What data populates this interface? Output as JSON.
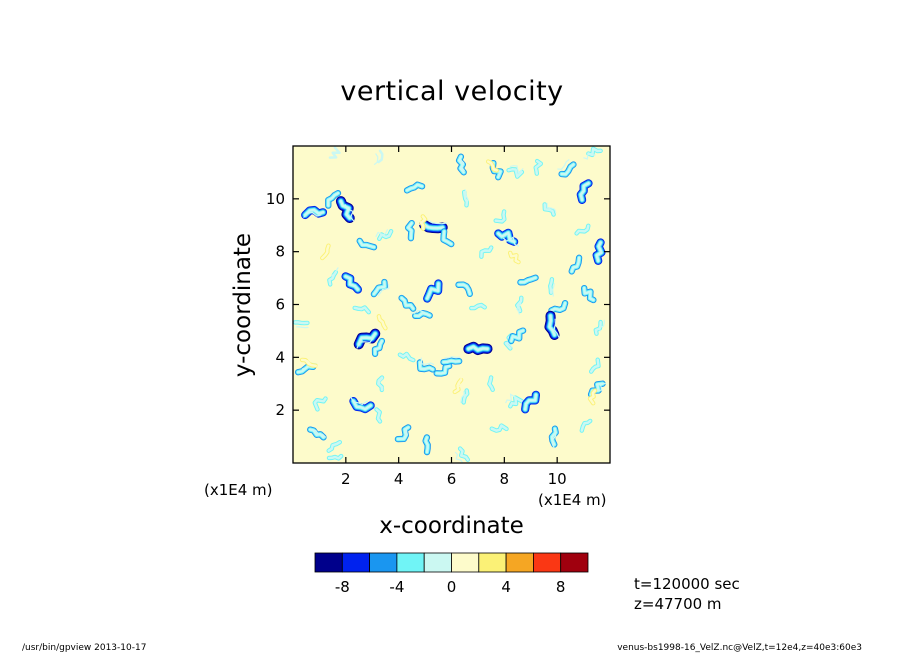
{
  "chart_data": {
    "type": "heatmap",
    "title": "vertical velocity",
    "xlabel": "x-coordinate",
    "ylabel": "y-coordinate",
    "x_scale_label": "(x1E4 m)",
    "y_scale_label": "(x1E4 m)",
    "xlim": [
      0,
      12
    ],
    "ylim": [
      0,
      12
    ],
    "x_ticks": [
      "2",
      "4",
      "6",
      "8",
      "10"
    ],
    "y_ticks": [
      "2",
      "4",
      "6",
      "8",
      "10"
    ],
    "x_tick_values": [
      2,
      4,
      6,
      8,
      10
    ],
    "y_tick_values": [
      2,
      4,
      6,
      8,
      10
    ],
    "colorbar": {
      "levels": [
        -10,
        -8,
        -6,
        -4,
        -2,
        0,
        2,
        4,
        6,
        8,
        10
      ],
      "tick_labels": [
        "-8",
        "-4",
        "0",
        "4",
        "8"
      ],
      "tick_values": [
        -8,
        -4,
        0,
        4,
        8
      ],
      "colors": [
        "#00008b",
        "#0022ee",
        "#1a96f0",
        "#70f4f6",
        "#cbf8f2",
        "#fdfbcb",
        "#fbf176",
        "#f5a623",
        "#fa3714",
        "#a0000e"
      ]
    },
    "background_color": "#fdfbcb",
    "features": [
      {
        "x": 0.8,
        "y": 9.5,
        "v": -8
      },
      {
        "x": 1.5,
        "y": 10.0,
        "v": -6
      },
      {
        "x": 2.0,
        "y": 9.6,
        "v": -9
      },
      {
        "x": 2.8,
        "y": 8.3,
        "v": -6
      },
      {
        "x": 3.5,
        "y": 8.6,
        "v": -4
      },
      {
        "x": 4.5,
        "y": 8.8,
        "v": -5
      },
      {
        "x": 5.3,
        "y": 8.9,
        "v": -9
      },
      {
        "x": 5.8,
        "y": 8.5,
        "v": -5
      },
      {
        "x": 6.5,
        "y": 10.0,
        "v": -4
      },
      {
        "x": 4.6,
        "y": 10.4,
        "v": -6
      },
      {
        "x": 6.4,
        "y": 11.3,
        "v": -6
      },
      {
        "x": 7.7,
        "y": 11.1,
        "v": -5
      },
      {
        "x": 8.4,
        "y": 11.0,
        "v": -4
      },
      {
        "x": 9.3,
        "y": 11.2,
        "v": -3
      },
      {
        "x": 10.4,
        "y": 11.1,
        "v": -5
      },
      {
        "x": 11.0,
        "y": 10.3,
        "v": -8
      },
      {
        "x": 11.4,
        "y": 11.8,
        "v": -3
      },
      {
        "x": 1.6,
        "y": 11.7,
        "v": -2
      },
      {
        "x": 3.3,
        "y": 11.6,
        "v": -2
      },
      {
        "x": 7.9,
        "y": 9.3,
        "v": -3
      },
      {
        "x": 8.1,
        "y": 8.6,
        "v": -8
      },
      {
        "x": 7.3,
        "y": 8.0,
        "v": -4
      },
      {
        "x": 9.7,
        "y": 9.6,
        "v": -4
      },
      {
        "x": 11.0,
        "y": 8.8,
        "v": -4
      },
      {
        "x": 11.6,
        "y": 8.0,
        "v": -8
      },
      {
        "x": 10.7,
        "y": 7.5,
        "v": -5
      },
      {
        "x": 1.5,
        "y": 7.0,
        "v": -4
      },
      {
        "x": 2.2,
        "y": 6.8,
        "v": -8
      },
      {
        "x": 3.3,
        "y": 6.6,
        "v": -6
      },
      {
        "x": 2.6,
        "y": 5.8,
        "v": -4
      },
      {
        "x": 0.3,
        "y": 5.2,
        "v": -3
      },
      {
        "x": 4.3,
        "y": 6.0,
        "v": -6
      },
      {
        "x": 4.9,
        "y": 5.6,
        "v": -5
      },
      {
        "x": 5.3,
        "y": 6.5,
        "v": -8
      },
      {
        "x": 6.5,
        "y": 6.6,
        "v": -5
      },
      {
        "x": 7.0,
        "y": 6.0,
        "v": -4
      },
      {
        "x": 8.6,
        "y": 6.0,
        "v": -3
      },
      {
        "x": 8.9,
        "y": 6.9,
        "v": -6
      },
      {
        "x": 9.8,
        "y": 6.7,
        "v": -4
      },
      {
        "x": 10.1,
        "y": 5.8,
        "v": -6
      },
      {
        "x": 9.8,
        "y": 5.2,
        "v": -9
      },
      {
        "x": 11.2,
        "y": 6.4,
        "v": -5
      },
      {
        "x": 11.6,
        "y": 5.1,
        "v": -3
      },
      {
        "x": 3.2,
        "y": 4.4,
        "v": -5
      },
      {
        "x": 2.8,
        "y": 4.7,
        "v": -9
      },
      {
        "x": 4.3,
        "y": 4.0,
        "v": -4
      },
      {
        "x": 5.0,
        "y": 3.6,
        "v": -5
      },
      {
        "x": 5.7,
        "y": 3.5,
        "v": -5
      },
      {
        "x": 6.0,
        "y": 3.8,
        "v": -6
      },
      {
        "x": 7.0,
        "y": 4.3,
        "v": -9
      },
      {
        "x": 8.2,
        "y": 4.6,
        "v": -3
      },
      {
        "x": 8.5,
        "y": 4.8,
        "v": -6
      },
      {
        "x": 0.5,
        "y": 3.5,
        "v": -6
      },
      {
        "x": 1.0,
        "y": 2.3,
        "v": -4
      },
      {
        "x": 2.6,
        "y": 2.2,
        "v": -8
      },
      {
        "x": 3.2,
        "y": 1.8,
        "v": -3
      },
      {
        "x": 0.9,
        "y": 1.1,
        "v": -5
      },
      {
        "x": 1.6,
        "y": 0.6,
        "v": -4
      },
      {
        "x": 4.2,
        "y": 1.1,
        "v": -6
      },
      {
        "x": 5.0,
        "y": 0.7,
        "v": -5
      },
      {
        "x": 6.4,
        "y": 0.3,
        "v": -4
      },
      {
        "x": 7.8,
        "y": 1.3,
        "v": -4
      },
      {
        "x": 8.4,
        "y": 2.3,
        "v": -3
      },
      {
        "x": 9.0,
        "y": 2.3,
        "v": -8
      },
      {
        "x": 9.9,
        "y": 1.0,
        "v": -6
      },
      {
        "x": 11.1,
        "y": 1.4,
        "v": -3
      },
      {
        "x": 11.5,
        "y": 2.8,
        "v": -6
      },
      {
        "x": 11.4,
        "y": 3.7,
        "v": -3
      },
      {
        "x": 6.6,
        "y": 2.5,
        "v": -3
      },
      {
        "x": 7.5,
        "y": 3.0,
        "v": -3
      },
      {
        "x": 3.3,
        "y": 3.0,
        "v": -3
      },
      {
        "x": 1.6,
        "y": 0.2,
        "v": -3
      },
      {
        "x": 1.2,
        "y": 8.0,
        "v": 4
      },
      {
        "x": 3.3,
        "y": 5.3,
        "v": 4
      },
      {
        "x": 4.9,
        "y": 9.1,
        "v": 3
      },
      {
        "x": 7.5,
        "y": 11.2,
        "v": 3
      },
      {
        "x": 6.3,
        "y": 2.9,
        "v": 4
      },
      {
        "x": 11.4,
        "y": 2.5,
        "v": 3
      },
      {
        "x": 0.6,
        "y": 3.8,
        "v": 4
      },
      {
        "x": 8.4,
        "y": 7.8,
        "v": 3
      }
    ]
  },
  "info": {
    "time": "t=120000 sec",
    "height": "z=47700 m"
  },
  "footer": {
    "left": "/usr/bin/gpview   2013-10-17",
    "right": "venus-bs1998-16_VelZ.nc@VelZ,t=12e4,z=40e3:60e3"
  }
}
